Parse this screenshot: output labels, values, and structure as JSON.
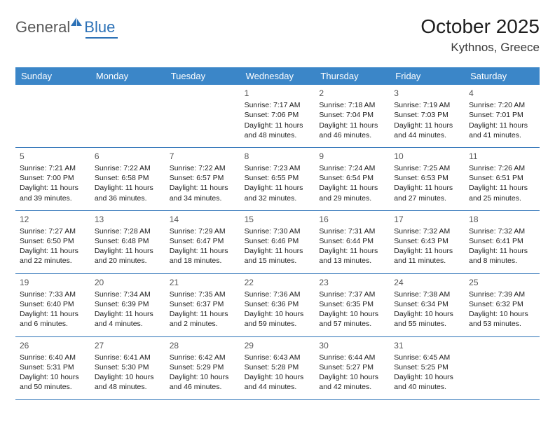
{
  "logo": {
    "general": "General",
    "blue": "Blue"
  },
  "title": "October 2025",
  "location": "Kythnos, Greece",
  "header_color": "#3b86c8",
  "border_color": "#2d72b7",
  "weekdays": [
    "Sunday",
    "Monday",
    "Tuesday",
    "Wednesday",
    "Thursday",
    "Friday",
    "Saturday"
  ],
  "weeks": [
    [
      {
        "num": "",
        "sunrise": "",
        "sunset": "",
        "daylight": ""
      },
      {
        "num": "",
        "sunrise": "",
        "sunset": "",
        "daylight": ""
      },
      {
        "num": "",
        "sunrise": "",
        "sunset": "",
        "daylight": ""
      },
      {
        "num": "1",
        "sunrise": "Sunrise: 7:17 AM",
        "sunset": "Sunset: 7:06 PM",
        "daylight": "Daylight: 11 hours and 48 minutes."
      },
      {
        "num": "2",
        "sunrise": "Sunrise: 7:18 AM",
        "sunset": "Sunset: 7:04 PM",
        "daylight": "Daylight: 11 hours and 46 minutes."
      },
      {
        "num": "3",
        "sunrise": "Sunrise: 7:19 AM",
        "sunset": "Sunset: 7:03 PM",
        "daylight": "Daylight: 11 hours and 44 minutes."
      },
      {
        "num": "4",
        "sunrise": "Sunrise: 7:20 AM",
        "sunset": "Sunset: 7:01 PM",
        "daylight": "Daylight: 11 hours and 41 minutes."
      }
    ],
    [
      {
        "num": "5",
        "sunrise": "Sunrise: 7:21 AM",
        "sunset": "Sunset: 7:00 PM",
        "daylight": "Daylight: 11 hours and 39 minutes."
      },
      {
        "num": "6",
        "sunrise": "Sunrise: 7:22 AM",
        "sunset": "Sunset: 6:58 PM",
        "daylight": "Daylight: 11 hours and 36 minutes."
      },
      {
        "num": "7",
        "sunrise": "Sunrise: 7:22 AM",
        "sunset": "Sunset: 6:57 PM",
        "daylight": "Daylight: 11 hours and 34 minutes."
      },
      {
        "num": "8",
        "sunrise": "Sunrise: 7:23 AM",
        "sunset": "Sunset: 6:55 PM",
        "daylight": "Daylight: 11 hours and 32 minutes."
      },
      {
        "num": "9",
        "sunrise": "Sunrise: 7:24 AM",
        "sunset": "Sunset: 6:54 PM",
        "daylight": "Daylight: 11 hours and 29 minutes."
      },
      {
        "num": "10",
        "sunrise": "Sunrise: 7:25 AM",
        "sunset": "Sunset: 6:53 PM",
        "daylight": "Daylight: 11 hours and 27 minutes."
      },
      {
        "num": "11",
        "sunrise": "Sunrise: 7:26 AM",
        "sunset": "Sunset: 6:51 PM",
        "daylight": "Daylight: 11 hours and 25 minutes."
      }
    ],
    [
      {
        "num": "12",
        "sunrise": "Sunrise: 7:27 AM",
        "sunset": "Sunset: 6:50 PM",
        "daylight": "Daylight: 11 hours and 22 minutes."
      },
      {
        "num": "13",
        "sunrise": "Sunrise: 7:28 AM",
        "sunset": "Sunset: 6:48 PM",
        "daylight": "Daylight: 11 hours and 20 minutes."
      },
      {
        "num": "14",
        "sunrise": "Sunrise: 7:29 AM",
        "sunset": "Sunset: 6:47 PM",
        "daylight": "Daylight: 11 hours and 18 minutes."
      },
      {
        "num": "15",
        "sunrise": "Sunrise: 7:30 AM",
        "sunset": "Sunset: 6:46 PM",
        "daylight": "Daylight: 11 hours and 15 minutes."
      },
      {
        "num": "16",
        "sunrise": "Sunrise: 7:31 AM",
        "sunset": "Sunset: 6:44 PM",
        "daylight": "Daylight: 11 hours and 13 minutes."
      },
      {
        "num": "17",
        "sunrise": "Sunrise: 7:32 AM",
        "sunset": "Sunset: 6:43 PM",
        "daylight": "Daylight: 11 hours and 11 minutes."
      },
      {
        "num": "18",
        "sunrise": "Sunrise: 7:32 AM",
        "sunset": "Sunset: 6:41 PM",
        "daylight": "Daylight: 11 hours and 8 minutes."
      }
    ],
    [
      {
        "num": "19",
        "sunrise": "Sunrise: 7:33 AM",
        "sunset": "Sunset: 6:40 PM",
        "daylight": "Daylight: 11 hours and 6 minutes."
      },
      {
        "num": "20",
        "sunrise": "Sunrise: 7:34 AM",
        "sunset": "Sunset: 6:39 PM",
        "daylight": "Daylight: 11 hours and 4 minutes."
      },
      {
        "num": "21",
        "sunrise": "Sunrise: 7:35 AM",
        "sunset": "Sunset: 6:37 PM",
        "daylight": "Daylight: 11 hours and 2 minutes."
      },
      {
        "num": "22",
        "sunrise": "Sunrise: 7:36 AM",
        "sunset": "Sunset: 6:36 PM",
        "daylight": "Daylight: 10 hours and 59 minutes."
      },
      {
        "num": "23",
        "sunrise": "Sunrise: 7:37 AM",
        "sunset": "Sunset: 6:35 PM",
        "daylight": "Daylight: 10 hours and 57 minutes."
      },
      {
        "num": "24",
        "sunrise": "Sunrise: 7:38 AM",
        "sunset": "Sunset: 6:34 PM",
        "daylight": "Daylight: 10 hours and 55 minutes."
      },
      {
        "num": "25",
        "sunrise": "Sunrise: 7:39 AM",
        "sunset": "Sunset: 6:32 PM",
        "daylight": "Daylight: 10 hours and 53 minutes."
      }
    ],
    [
      {
        "num": "26",
        "sunrise": "Sunrise: 6:40 AM",
        "sunset": "Sunset: 5:31 PM",
        "daylight": "Daylight: 10 hours and 50 minutes."
      },
      {
        "num": "27",
        "sunrise": "Sunrise: 6:41 AM",
        "sunset": "Sunset: 5:30 PM",
        "daylight": "Daylight: 10 hours and 48 minutes."
      },
      {
        "num": "28",
        "sunrise": "Sunrise: 6:42 AM",
        "sunset": "Sunset: 5:29 PM",
        "daylight": "Daylight: 10 hours and 46 minutes."
      },
      {
        "num": "29",
        "sunrise": "Sunrise: 6:43 AM",
        "sunset": "Sunset: 5:28 PM",
        "daylight": "Daylight: 10 hours and 44 minutes."
      },
      {
        "num": "30",
        "sunrise": "Sunrise: 6:44 AM",
        "sunset": "Sunset: 5:27 PM",
        "daylight": "Daylight: 10 hours and 42 minutes."
      },
      {
        "num": "31",
        "sunrise": "Sunrise: 6:45 AM",
        "sunset": "Sunset: 5:25 PM",
        "daylight": "Daylight: 10 hours and 40 minutes."
      },
      {
        "num": "",
        "sunrise": "",
        "sunset": "",
        "daylight": ""
      }
    ]
  ]
}
